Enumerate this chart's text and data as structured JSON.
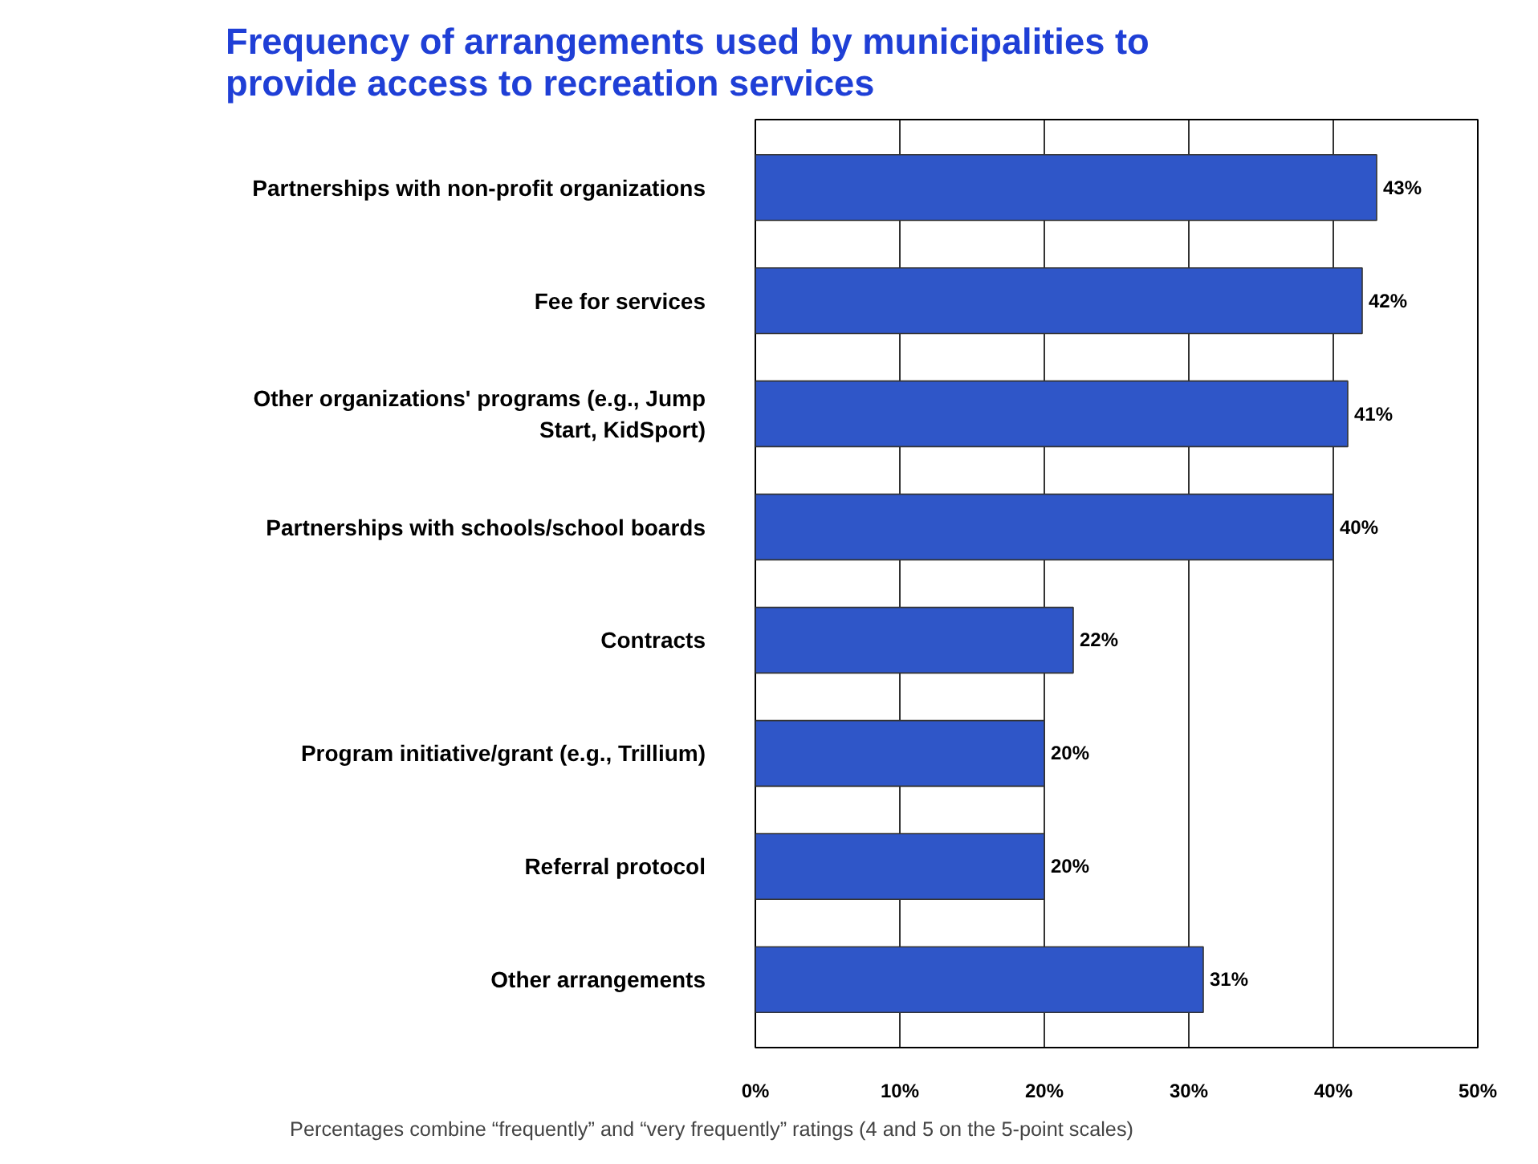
{
  "chart_data": {
    "type": "bar",
    "orientation": "horizontal",
    "title": "Frequency of arrangements used by municipalities to provide access to recreation services",
    "categories": [
      "Partnerships with non-profit organizations",
      "Fee for services",
      "Other organizations' programs (e.g., Jump Start, KidSport)",
      "Partnerships with schools/school boards",
      "Contracts",
      "Program initiative/grant (e.g., Trillium)",
      "Referral protocol",
      "Other arrangements"
    ],
    "values": [
      43,
      42,
      41,
      40,
      22,
      20,
      20,
      31
    ],
    "value_labels": [
      "43%",
      "42%",
      "41%",
      "40%",
      "22%",
      "20%",
      "20%",
      "31%"
    ],
    "color": "#2f56c8",
    "xlim": [
      0,
      50
    ],
    "xticks": [
      {
        "value": 0,
        "label": "0%"
      },
      {
        "value": 10,
        "label": "10%"
      },
      {
        "value": 20,
        "label": "20%"
      },
      {
        "value": 30,
        "label": "30%"
      },
      {
        "value": 40,
        "label": "40%"
      },
      {
        "value": 50,
        "label": "50%"
      }
    ],
    "grid": "x",
    "annotations": [
      "Percentages combine “frequently” and “very frequently” ratings (4 and 5 on the 5-point scales)"
    ]
  }
}
